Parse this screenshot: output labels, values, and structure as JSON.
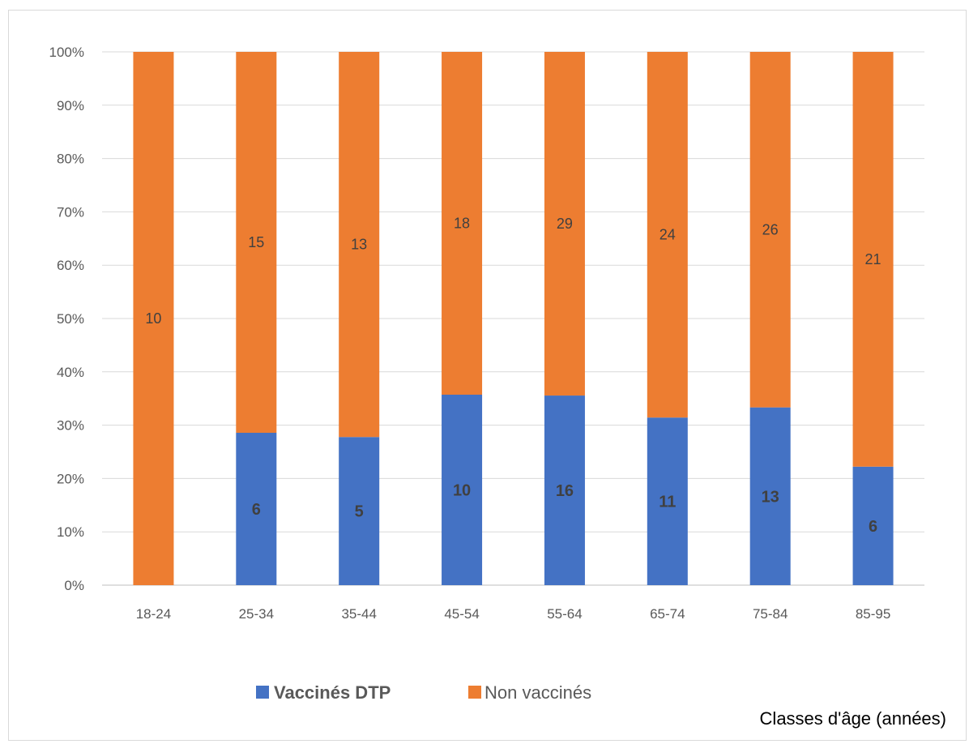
{
  "chart_data": {
    "type": "bar",
    "stacked": "percent",
    "categories": [
      "18-24",
      "25-34",
      "35-44",
      "45-54",
      "55-64",
      "65-74",
      "75-84",
      "85-95"
    ],
    "series": [
      {
        "name": "Vaccinés DTP",
        "color": "#4472c4",
        "values": [
          0,
          6,
          5,
          10,
          16,
          11,
          13,
          6
        ]
      },
      {
        "name": "Non vaccinés",
        "color": "#ed7d31",
        "values": [
          10,
          15,
          13,
          18,
          29,
          24,
          26,
          21
        ]
      }
    ],
    "y_ticks": [
      "0%",
      "10%",
      "20%",
      "30%",
      "40%",
      "50%",
      "60%",
      "70%",
      "80%",
      "90%",
      "100%"
    ],
    "ylim": [
      0,
      100
    ],
    "xlabel": "Classes d'âge (années)",
    "ylabel": "",
    "title": "",
    "grid": true,
    "legend_position": "bottom"
  }
}
